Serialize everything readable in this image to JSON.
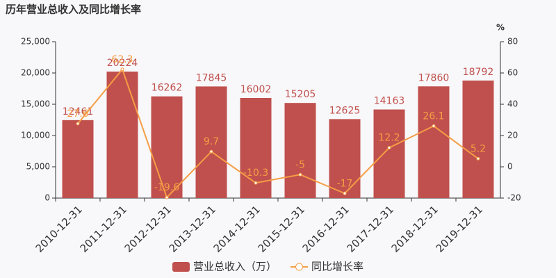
{
  "chart_data": {
    "type": "bar",
    "title": "历年营业总收入及同比增长率",
    "y2_label": "%",
    "categories": [
      "2010-12-31",
      "2011-12-31",
      "2012-12-31",
      "2013-12-31",
      "2014-12-31",
      "2015-12-31",
      "2016-12-31",
      "2017-12-31",
      "2018-12-31",
      "2019-12-31"
    ],
    "series": [
      {
        "name": "营业总收入（万）",
        "type": "bar",
        "color": "#c0504d",
        "values": [
          12461,
          20224,
          16262,
          17845,
          16002,
          15205,
          12625,
          14163,
          17860,
          18792
        ]
      },
      {
        "name": "同比增长率",
        "type": "line",
        "axis": "y2",
        "color": "#f59d45",
        "values": [
          27.6,
          62.3,
          -19.6,
          9.7,
          -10.3,
          -5,
          -17,
          12.2,
          26.1,
          5.2
        ]
      }
    ],
    "ylim": [
      0,
      25000
    ],
    "yticks": [
      0,
      {
        "value": 5000,
        "label": "5,000"
      },
      {
        "value": 10000,
        "label": "10,000"
      },
      {
        "value": 15000,
        "label": "15,000"
      },
      {
        "value": 20000,
        "label": "20,000"
      },
      {
        "value": 25000,
        "label": "25,000"
      }
    ],
    "y2lim": [
      -20,
      80
    ],
    "y2ticks": [
      -20,
      0,
      20,
      40,
      60,
      80
    ],
    "grid": false
  }
}
